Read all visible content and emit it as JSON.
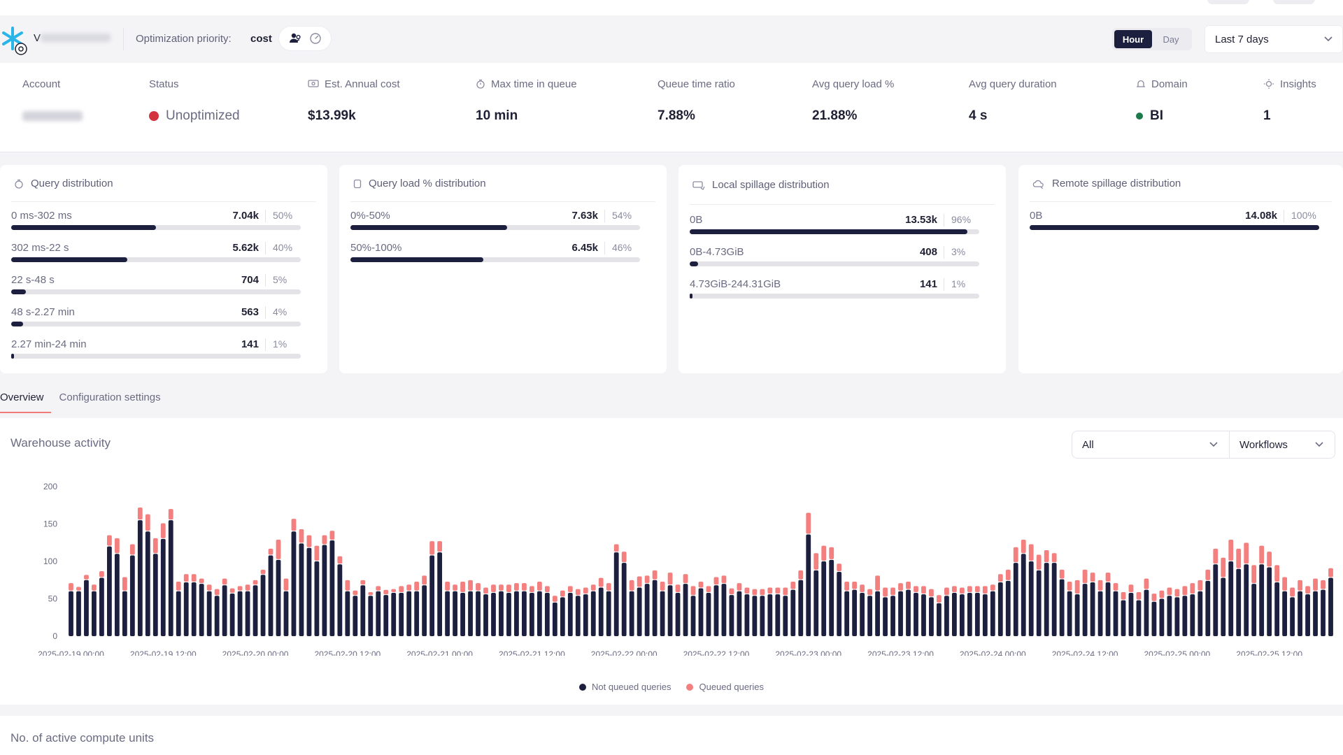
{
  "header": {
    "warehouse_initial": "V",
    "optimization_label": "Optimization priority:",
    "optimization_value": "cost",
    "icons": [
      "team-icon",
      "gauge-icon"
    ],
    "granularity": {
      "options": [
        "Hour",
        "Day"
      ],
      "selected": "Hour"
    },
    "range": "Last 7 days"
  },
  "kpis": {
    "account_label": "Account",
    "status_label": "Status",
    "status_value": "Unoptimized",
    "annual_cost_label": "Est. Annual cost",
    "annual_cost_value": "$13.99k",
    "max_queue_label": "Max time in queue",
    "max_queue_value": "10 min",
    "queue_ratio_label": "Queue time ratio",
    "queue_ratio_value": "7.88%",
    "avg_load_label": "Avg query load %",
    "avg_load_value": "21.88%",
    "avg_duration_label": "Avg query duration",
    "avg_duration_value": "4 s",
    "domain_label": "Domain",
    "domain_value": "BI",
    "insights_label": "Insights",
    "insights_value": "1"
  },
  "colors": {
    "navy": "#1d1f3f",
    "salmon": "#f47f7f",
    "status_red": "#d3323f",
    "domain_green": "#1b7a4a"
  },
  "cards": [
    {
      "title": "Query distribution",
      "icon": "stopwatch-icon",
      "rows": [
        {
          "label": "0 ms-302 ms",
          "count": "7.04k",
          "pct": "50%",
          "fraction": 0.5
        },
        {
          "label": "302 ms-22 s",
          "count": "5.62k",
          "pct": "40%",
          "fraction": 0.4
        },
        {
          "label": "22 s-48 s",
          "count": "704",
          "pct": "5%",
          "fraction": 0.05
        },
        {
          "label": "48 s-2.27 min",
          "count": "563",
          "pct": "4%",
          "fraction": 0.04
        },
        {
          "label": "2.27 min-24 min",
          "count": "141",
          "pct": "1%",
          "fraction": 0.01
        }
      ]
    },
    {
      "title": "Query load % distribution",
      "icon": "cylinder-icon",
      "rows": [
        {
          "label": "0%-50%",
          "count": "7.63k",
          "pct": "54%",
          "fraction": 0.54
        },
        {
          "label": "50%-100%",
          "count": "6.45k",
          "pct": "46%",
          "fraction": 0.46
        }
      ]
    },
    {
      "title": "Local spillage distribution",
      "icon": "drive-icon",
      "rows": [
        {
          "label": "0B",
          "count": "13.53k",
          "pct": "96%",
          "fraction": 0.96
        },
        {
          "label": "0B-4.73GiB",
          "count": "408",
          "pct": "3%",
          "fraction": 0.03
        },
        {
          "label": "4.73GiB-244.31GiB",
          "count": "141",
          "pct": "1%",
          "fraction": 0.01
        }
      ]
    },
    {
      "title": "Remote spillage distribution",
      "icon": "cloud-icon",
      "rows": [
        {
          "label": "0B",
          "count": "14.08k",
          "pct": "100%",
          "fraction": 1.0
        }
      ]
    }
  ],
  "tabs": [
    {
      "label": "Overview",
      "active": true
    },
    {
      "label": "Configuration settings",
      "active": false
    }
  ],
  "activity": {
    "title": "Warehouse activity",
    "filter_all": "All",
    "filter_workflows": "Workflows"
  },
  "chart_data": {
    "type": "bar",
    "stacked": true,
    "ylim": [
      0,
      200
    ],
    "yticks": [
      0,
      50,
      100,
      150,
      200
    ],
    "x_start": "2025-02-19 00:00",
    "x_interval": "1 hour",
    "xticks": [
      "2025-02-19 00:00",
      "2025-02-19 12:00",
      "2025-02-20 00:00",
      "2025-02-20 12:00",
      "2025-02-21 00:00",
      "2025-02-21 12:00",
      "2025-02-22 00:00",
      "2025-02-22 12:00",
      "2025-02-23 00:00",
      "2025-02-23 12:00",
      "2025-02-24 00:00",
      "2025-02-24 12:00",
      "2025-02-25 00:00",
      "2025-02-25 12:00"
    ],
    "legend_position": "bottom",
    "series": [
      {
        "name": "Not queued queries",
        "color": "#1d1f3f",
        "values": [
          60,
          60,
          75,
          60,
          78,
          120,
          110,
          60,
          108,
          155,
          140,
          110,
          130,
          155,
          60,
          72,
          72,
          70,
          60,
          54,
          68,
          57,
          60,
          60,
          68,
          82,
          108,
          102,
          60,
          140,
          124,
          118,
          100,
          122,
          128,
          96,
          60,
          54,
          68,
          54,
          60,
          55,
          58,
          58,
          60,
          60,
          68,
          108,
          112,
          60,
          60,
          58,
          60,
          60,
          56,
          58,
          60,
          58,
          60,
          60,
          58,
          60,
          58,
          45,
          52,
          58,
          54,
          56,
          60,
          65,
          60,
          112,
          98,
          60,
          65,
          70,
          75,
          60,
          68,
          58,
          70,
          54,
          64,
          58,
          68,
          70,
          55,
          60,
          56,
          54,
          54,
          56,
          56,
          54,
          62,
          75,
          136,
          88,
          100,
          102,
          86,
          60,
          62,
          58,
          54,
          60,
          52,
          54,
          60,
          62,
          58,
          56,
          52,
          44,
          54,
          58,
          56,
          58,
          58,
          56,
          60,
          72,
          74,
          98,
          110,
          100,
          88,
          98,
          98,
          76,
          60,
          56,
          70,
          72,
          60,
          72,
          60,
          48,
          58,
          48,
          62,
          46,
          50,
          54,
          52,
          54,
          56,
          60,
          74,
          96,
          78,
          100,
          90,
          96,
          70,
          96,
          92,
          72,
          60,
          52,
          60,
          56,
          60,
          62,
          78
        ]
      },
      {
        "name": "Queued queries",
        "color": "#f47f7f",
        "values": [
          10,
          5,
          6,
          8,
          8,
          14,
          20,
          18,
          14,
          16,
          22,
          20,
          20,
          14,
          12,
          10,
          10,
          6,
          8,
          8,
          8,
          6,
          6,
          8,
          6,
          6,
          8,
          26,
          16,
          16,
          18,
          16,
          20,
          12,
          12,
          10,
          14,
          6,
          6,
          4,
          6,
          6,
          4,
          8,
          8,
          12,
          12,
          18,
          14,
          12,
          8,
          14,
          14,
          10,
          8,
          10,
          8,
          10,
          10,
          10,
          8,
          12,
          8,
          8,
          8,
          8,
          8,
          8,
          8,
          12,
          10,
          10,
          14,
          14,
          14,
          10,
          12,
          12,
          16,
          10,
          12,
          12,
          8,
          8,
          10,
          10,
          8,
          10,
          8,
          8,
          8,
          8,
          8,
          10,
          10,
          12,
          28,
          22,
          20,
          16,
          10,
          12,
          10,
          10,
          8,
          20,
          12,
          10,
          10,
          10,
          8,
          10,
          10,
          10,
          10,
          8,
          8,
          8,
          8,
          10,
          8,
          10,
          14,
          20,
          18,
          22,
          20,
          16,
          12,
          12,
          12,
          18,
          18,
          12,
          14,
          12,
          10,
          10,
          10,
          10,
          14,
          10,
          10,
          10,
          10,
          12,
          14,
          14,
          14,
          20,
          26,
          28,
          26,
          28,
          24,
          24,
          20,
          22,
          18,
          12,
          14,
          10,
          16,
          12,
          12
        ]
      }
    ]
  },
  "legend": {
    "not_queued": "Not queued queries",
    "queued": "Queued queries"
  },
  "compute": {
    "title": "No. of active compute units"
  }
}
